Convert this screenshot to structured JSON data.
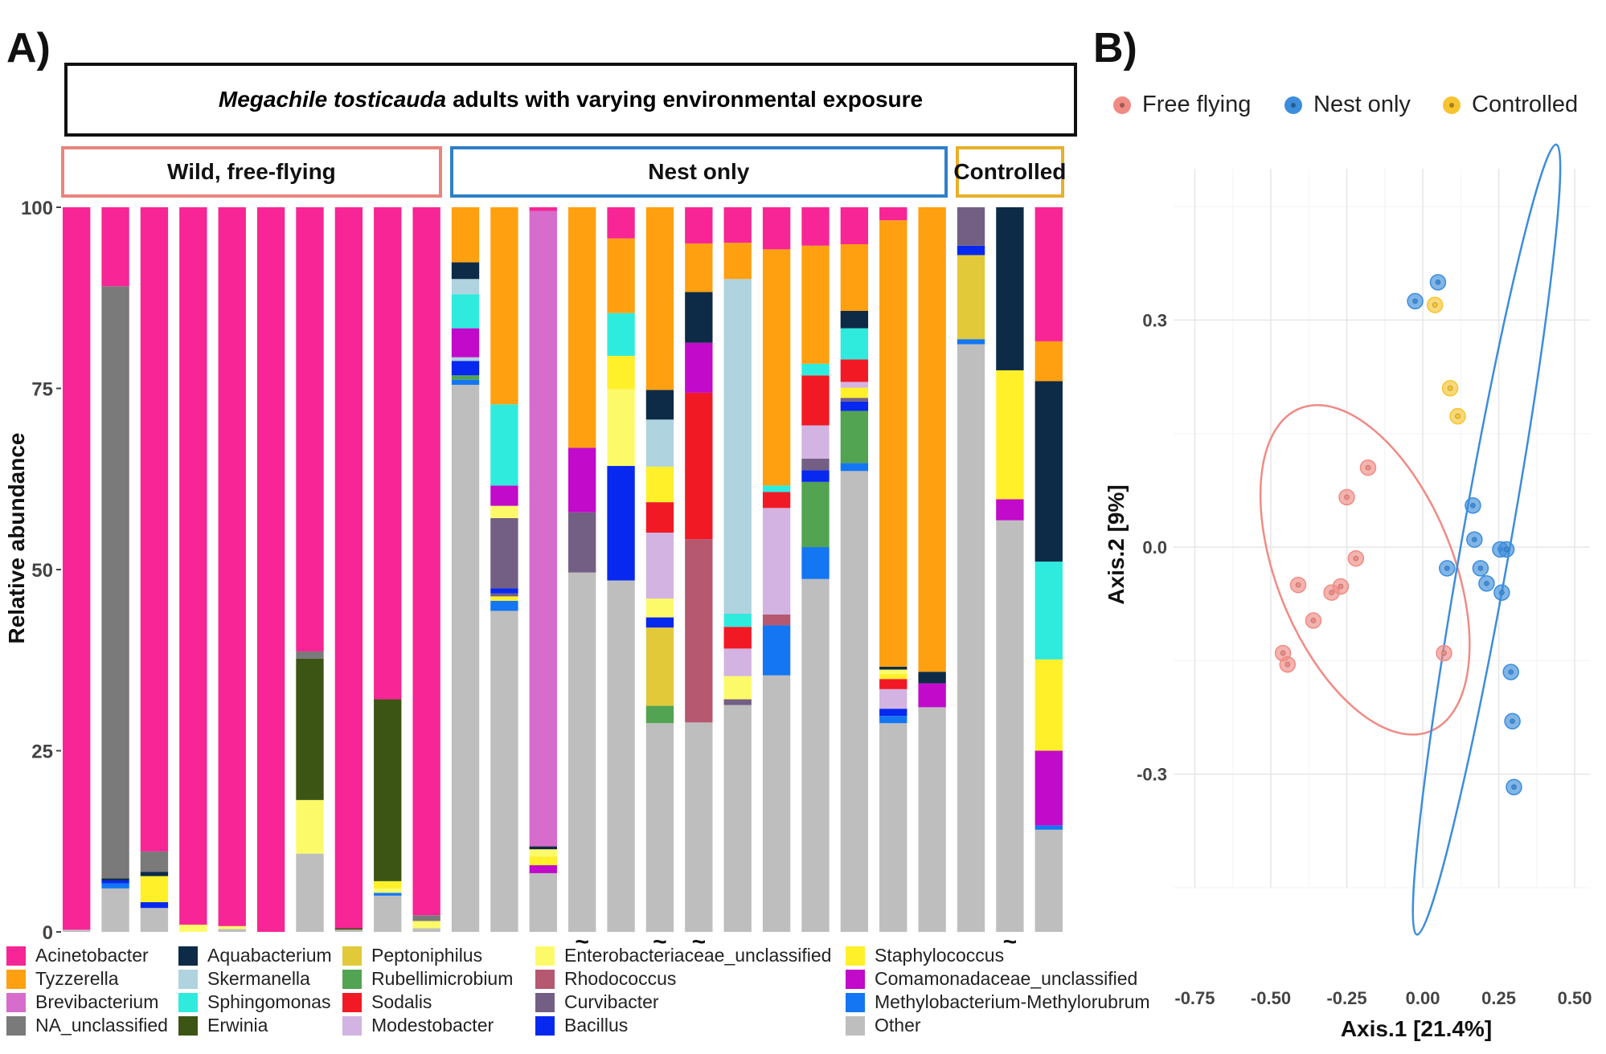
{
  "panel_labels": {
    "a": "A)",
    "b": "B)"
  },
  "header": {
    "species": "Megachile tosticauda",
    "title_rest": "adults with varying environmental exposure",
    "groups": [
      "Wild, free-flying",
      "Nest only",
      "Controlled"
    ]
  },
  "colors": {
    "Acinetobacter": "#F72595",
    "Tyzzerella": "#FFA011",
    "Brevibacterium": "#D66CCB",
    "NA_unclassified": "#7A7A7A",
    "Aquabacterium": "#0D2B47",
    "Skermanella": "#AFD3DF",
    "Sphingomonas": "#2EEBDD",
    "Erwinia": "#3C5514",
    "Peptoniphilus": "#E2C93A",
    "Rubellimicrobium": "#52A352",
    "Sodalis": "#F11A24",
    "Modestobacter": "#D2B3E2",
    "Enterobacteriaceae_unclassified": "#FDFA6A",
    "Rhodococcus": "#B65870",
    "Curvibacter": "#735F84",
    "Bacillus": "#0728EF",
    "Staphylococcus": "#FFF02A",
    "Comamonadaceae_unclassified": "#C10ACA",
    "Methylobacterium-Methylorubrum": "#1576F3",
    "Other": "#BEBEBE",
    "free_flying": "#F08B84",
    "nest_only": "#3C8DDC",
    "controlled": "#F6C42E"
  },
  "legend": [
    "Acinetobacter",
    "Tyzzerella",
    "Brevibacterium",
    "NA_unclassified",
    "Aquabacterium",
    "Skermanella",
    "Sphingomonas",
    "Erwinia",
    "Peptoniphilus",
    "Rubellimicrobium",
    "Sodalis",
    "Modestobacter",
    "Enterobacteriaceae_unclassified",
    "Rhodococcus",
    "Curvibacter",
    "Bacillus",
    "Staphylococcus",
    "Comamonadaceae_unclassified",
    "Methylobacterium-Methylorubrum",
    "Other"
  ],
  "chart_data": [
    {
      "type": "bar",
      "stacked": true,
      "title": "Megachile tosticauda adults with varying environmental exposure",
      "ylabel": "Relative abundance",
      "xlabel": "",
      "ylim": [
        0,
        100
      ],
      "yticks": [
        0,
        25,
        50,
        75,
        100
      ],
      "groups": [
        {
          "name": "Wild, free-flying",
          "count": 10
        },
        {
          "name": "Nest only",
          "count": 13
        },
        {
          "name": "Controlled",
          "count": 3
        }
      ],
      "tilde_marker": "~",
      "tilde_bars": [
        14,
        16,
        17,
        25
      ],
      "bars": [
        {
          "segments": [
            [
              "Other",
              0.3
            ],
            [
              "Acinetobacter",
              99.7
            ]
          ]
        },
        {
          "segments": [
            [
              "Other",
              6.0
            ],
            [
              "Methylobacterium-Methylorubrum",
              0.7
            ],
            [
              "Bacillus",
              0.4
            ],
            [
              "Aquabacterium",
              0.3
            ],
            [
              "NA_unclassified",
              81.7
            ],
            [
              "Acinetobacter",
              10.9
            ]
          ]
        },
        {
          "segments": [
            [
              "Other",
              3.3
            ],
            [
              "Bacillus",
              0.8
            ],
            [
              "Staphylococcus",
              3.6
            ],
            [
              "Aquabacterium",
              0.6
            ],
            [
              "NA_unclassified",
              2.8
            ],
            [
              "Acinetobacter",
              88.9
            ]
          ]
        },
        {
          "segments": [
            [
              "Enterobacteriaceae_unclassified",
              1.0
            ],
            [
              "Acinetobacter",
              99.0
            ]
          ]
        },
        {
          "segments": [
            [
              "Other",
              0.4
            ],
            [
              "Enterobacteriaceae_unclassified",
              0.4
            ],
            [
              "Acinetobacter",
              99.2
            ]
          ]
        },
        {
          "segments": [
            [
              "Acinetobacter",
              100.0
            ]
          ]
        },
        {
          "segments": [
            [
              "Other",
              10.8
            ],
            [
              "Enterobacteriaceae_unclassified",
              7.4
            ],
            [
              "Erwinia",
              19.5
            ],
            [
              "NA_unclassified",
              1.0
            ],
            [
              "Acinetobacter",
              61.3
            ]
          ]
        },
        {
          "segments": [
            [
              "Other",
              0.3
            ],
            [
              "Erwinia",
              0.2
            ],
            [
              "Acinetobacter",
              99.5
            ]
          ]
        },
        {
          "segments": [
            [
              "Other",
              5.0
            ],
            [
              "Methylobacterium-Methylorubrum",
              0.4
            ],
            [
              "Enterobacteriaceae_unclassified",
              0.6
            ],
            [
              "Staphylococcus",
              1.0
            ],
            [
              "Erwinia",
              25.1
            ],
            [
              "Acinetobacter",
              67.9
            ]
          ]
        },
        {
          "segments": [
            [
              "Other",
              0.5
            ],
            [
              "Enterobacteriaceae_unclassified",
              1.0
            ],
            [
              "NA_unclassified",
              0.8
            ],
            [
              "Acinetobacter",
              97.7
            ]
          ]
        },
        {
          "segments": [
            [
              "Other",
              75.5
            ],
            [
              "Methylobacterium-Methylorubrum",
              0.7
            ],
            [
              "Rubellimicrobium",
              0.6
            ],
            [
              "Bacillus",
              2.0
            ],
            [
              "Skermanella",
              0.5
            ],
            [
              "Comamonadaceae_unclassified",
              4.0
            ],
            [
              "Sphingomonas",
              4.7
            ],
            [
              "Skermanella",
              2.1
            ],
            [
              "Aquabacterium",
              2.3
            ],
            [
              "Tyzzerella",
              7.6
            ]
          ]
        },
        {
          "segments": [
            [
              "Other",
              44.3
            ],
            [
              "Methylobacterium-Methylorubrum",
              1.4
            ],
            [
              "Staphylococcus",
              0.6
            ],
            [
              "Curvibacter",
              0.4
            ],
            [
              "Bacillus",
              0.7
            ],
            [
              "Curvibacter",
              9.7
            ],
            [
              "Enterobacteriaceae_unclassified",
              1.7
            ],
            [
              "Comamonadaceae_unclassified",
              2.8
            ],
            [
              "Sphingomonas",
              11.2
            ],
            [
              "Tyzzerella",
              27.2
            ]
          ]
        },
        {
          "segments": [
            [
              "Other",
              8.1
            ],
            [
              "Comamonadaceae_unclassified",
              1.1
            ],
            [
              "Staphylococcus",
              1.2
            ],
            [
              "Enterobacteriaceae_unclassified",
              1.0
            ],
            [
              "Aquabacterium",
              0.4
            ],
            [
              "Brevibacterium",
              87.7
            ],
            [
              "Acinetobacter",
              0.5
            ]
          ]
        },
        {
          "segments": [
            [
              "Other",
              49.6
            ],
            [
              "Curvibacter",
              8.3
            ],
            [
              "Comamonadaceae_unclassified",
              8.9
            ],
            [
              "Tyzzerella",
              33.2
            ]
          ]
        },
        {
          "segments": [
            [
              "Other",
              48.5
            ],
            [
              "Bacillus",
              15.8
            ],
            [
              "Enterobacteriaceae_unclassified",
              10.6
            ],
            [
              "Staphylococcus",
              4.6
            ],
            [
              "Sphingomonas",
              5.9
            ],
            [
              "Tyzzerella",
              10.3
            ],
            [
              "Acinetobacter",
              4.3
            ]
          ]
        },
        {
          "segments": [
            [
              "Other",
              28.8
            ],
            [
              "Rubellimicrobium",
              2.4
            ],
            [
              "Peptoniphilus",
              10.8
            ],
            [
              "Bacillus",
              1.4
            ],
            [
              "Enterobacteriaceae_unclassified",
              2.6
            ],
            [
              "Modestobacter",
              9.1
            ],
            [
              "Sodalis",
              4.2
            ],
            [
              "Staphylococcus",
              4.9
            ],
            [
              "Skermanella",
              6.5
            ],
            [
              "Aquabacterium",
              4.1
            ],
            [
              "Tyzzerella",
              25.2
            ]
          ]
        },
        {
          "segments": [
            [
              "Other",
              28.9
            ],
            [
              "Rhodococcus",
              25.3
            ],
            [
              "Sodalis",
              20.2
            ],
            [
              "Comamonadaceae_unclassified",
              6.9
            ],
            [
              "Aquabacterium",
              7.0
            ],
            [
              "Tyzzerella",
              6.7
            ],
            [
              "Acinetobacter",
              5.0
            ]
          ]
        },
        {
          "segments": [
            [
              "Other",
              31.3
            ],
            [
              "Curvibacter",
              0.8
            ],
            [
              "Enterobacteriaceae_unclassified",
              3.2
            ],
            [
              "Modestobacter",
              3.8
            ],
            [
              "Sodalis",
              3.0
            ],
            [
              "Sphingomonas",
              1.8
            ],
            [
              "Skermanella",
              46.2
            ],
            [
              "Tyzzerella",
              5.0
            ],
            [
              "Acinetobacter",
              4.9
            ]
          ]
        },
        {
          "segments": [
            [
              "Other",
              35.4
            ],
            [
              "Methylobacterium-Methylorubrum",
              6.9
            ],
            [
              "Rhodococcus",
              1.5
            ],
            [
              "Modestobacter",
              14.7
            ],
            [
              "Sodalis",
              2.2
            ],
            [
              "Sphingomonas",
              0.9
            ],
            [
              "Tyzzerella",
              32.6
            ],
            [
              "Acinetobacter",
              5.8
            ]
          ]
        },
        {
          "segments": [
            [
              "Other",
              48.7
            ],
            [
              "Methylobacterium-Methylorubrum",
              4.4
            ],
            [
              "Rubellimicrobium",
              9.0
            ],
            [
              "Bacillus",
              1.6
            ],
            [
              "Curvibacter",
              1.6
            ],
            [
              "Modestobacter",
              4.6
            ],
            [
              "Sodalis",
              6.9
            ],
            [
              "Sphingomonas",
              1.6
            ],
            [
              "Tyzzerella",
              16.3
            ],
            [
              "Acinetobacter",
              5.3
            ]
          ]
        },
        {
          "segments": [
            [
              "Other",
              63.6
            ],
            [
              "Methylobacterium-Methylorubrum",
              1.1
            ],
            [
              "Rubellimicrobium",
              7.2
            ],
            [
              "Bacillus",
              1.3
            ],
            [
              "Curvibacter",
              0.5
            ],
            [
              "Staphylococcus",
              1.4
            ],
            [
              "Modestobacter",
              0.8
            ],
            [
              "Sodalis",
              3.1
            ],
            [
              "Sphingomonas",
              4.3
            ],
            [
              "Aquabacterium",
              2.4
            ],
            [
              "Tyzzerella",
              9.2
            ],
            [
              "Acinetobacter",
              5.1
            ]
          ]
        },
        {
          "segments": [
            [
              "Other",
              28.8
            ],
            [
              "Methylobacterium-Methylorubrum",
              1.0
            ],
            [
              "Bacillus",
              1.0
            ],
            [
              "Modestobacter",
              2.7
            ],
            [
              "Sodalis",
              1.4
            ],
            [
              "Staphylococcus",
              0.7
            ],
            [
              "Enterobacteriaceae_unclassified",
              0.6
            ],
            [
              "Aquabacterium",
              0.4
            ],
            [
              "Tyzzerella",
              61.6
            ],
            [
              "Acinetobacter",
              1.8
            ]
          ]
        },
        {
          "segments": [
            [
              "Other",
              31.0
            ],
            [
              "Comamonadaceae_unclassified",
              3.3
            ],
            [
              "Aquabacterium",
              1.6
            ],
            [
              "Tyzzerella",
              64.1
            ]
          ]
        },
        {
          "segments": [
            [
              "Other",
              81.1
            ],
            [
              "Methylobacterium-Methylorubrum",
              0.7
            ],
            [
              "Peptoniphilus",
              11.6
            ],
            [
              "Bacillus",
              1.3
            ],
            [
              "Curvibacter",
              5.3
            ]
          ]
        },
        {
          "segments": [
            [
              "Other",
              56.8
            ],
            [
              "Comamonadaceae_unclassified",
              2.9
            ],
            [
              "Staphylococcus",
              17.8
            ],
            [
              "Aquabacterium",
              22.5
            ]
          ]
        },
        {
          "segments": [
            [
              "Other",
              14.1
            ],
            [
              "Methylobacterium-Methylorubrum",
              0.6
            ],
            [
              "Comamonadaceae_unclassified",
              10.3
            ],
            [
              "Staphylococcus",
              12.6
            ],
            [
              "Sphingomonas",
              13.5
            ],
            [
              "Aquabacterium",
              24.9
            ],
            [
              "Tyzzerella",
              5.5
            ],
            [
              "Acinetobacter",
              18.5
            ]
          ]
        }
      ]
    },
    {
      "type": "scatter",
      "title": "",
      "xlabel": "Axis.1 [21.4%]",
      "ylabel": "Axis.2 [9%]",
      "xlim": [
        -0.82,
        0.55
      ],
      "ylim": [
        -0.45,
        0.5
      ],
      "xticks": [
        -0.75,
        -0.5,
        -0.25,
        0.0,
        0.25,
        0.5
      ],
      "xtick_labels": [
        "-0.75",
        "-0.50",
        "-0.25",
        "0.00",
        "0.25",
        "0.50"
      ],
      "yticks": [
        -0.3,
        0.0,
        0.3
      ],
      "ytick_labels": [
        "-0.3",
        "0.0",
        "0.3"
      ],
      "legend_position": "top",
      "series": [
        {
          "name": "Free flying",
          "color_key": "free_flying",
          "points": [
            [
              -0.18,
              0.105
            ],
            [
              -0.25,
              0.066
            ],
            [
              -0.22,
              -0.015
            ],
            [
              -0.27,
              -0.052
            ],
            [
              -0.3,
              -0.06
            ],
            [
              -0.41,
              -0.05
            ],
            [
              -0.36,
              -0.097
            ],
            [
              -0.46,
              -0.14
            ],
            [
              -0.445,
              -0.155
            ],
            [
              0.07,
              -0.14
            ]
          ],
          "ellipse": {
            "cx": -0.19,
            "cy": -0.03,
            "rx": 0.29,
            "ry": 0.23,
            "angle_deg": -22
          }
        },
        {
          "name": "Nest only",
          "color_key": "nest_only",
          "points": [
            [
              -0.025,
              0.325
            ],
            [
              0.05,
              0.35
            ],
            [
              0.165,
              0.055
            ],
            [
              0.17,
              0.01
            ],
            [
              0.08,
              -0.028
            ],
            [
              0.19,
              -0.028
            ],
            [
              0.21,
              -0.048
            ],
            [
              0.255,
              -0.003
            ],
            [
              0.275,
              -0.003
            ],
            [
              0.26,
              -0.06
            ],
            [
              0.29,
              -0.165
            ],
            [
              0.295,
              -0.23
            ],
            [
              0.3,
              -0.317
            ]
          ],
          "ellipse": {
            "cx": 0.21,
            "cy": 0.01,
            "rx": 0.08,
            "ry": 0.53,
            "angle_deg": 10
          }
        },
        {
          "name": "Controlled",
          "color_key": "controlled",
          "points": [
            [
              0.04,
              0.32
            ],
            [
              0.09,
              0.21
            ],
            [
              0.115,
              0.173
            ]
          ]
        }
      ]
    }
  ]
}
